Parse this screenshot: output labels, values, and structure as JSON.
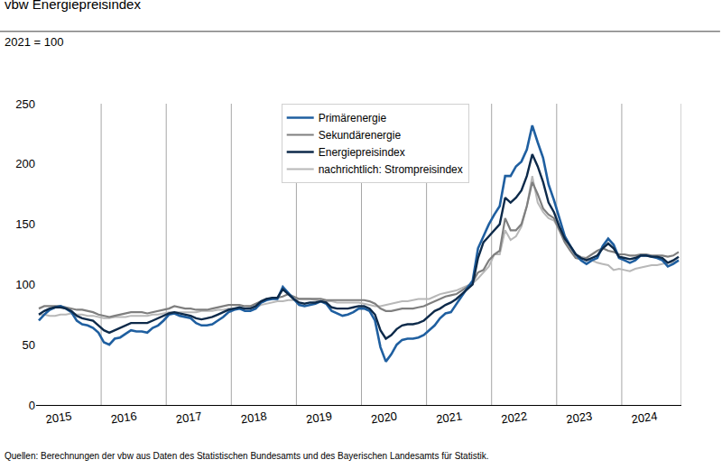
{
  "chart_data": {
    "type": "line",
    "title": "vbw Energiepreisindex",
    "subtitle": "2021 = 100",
    "source": "Quellen: Berechnungen der vbw aus Daten des Statistischen Bundesamts und des Bayerischen Landesamts für Statistik.",
    "categories": [
      null,
      null,
      null,
      null,
      null,
      null,
      "2015",
      null,
      null,
      null,
      null,
      null,
      null,
      null,
      null,
      null,
      null,
      null,
      "2016",
      null,
      null,
      null,
      null,
      null,
      null,
      null,
      null,
      null,
      null,
      null,
      "2017",
      null,
      null,
      null,
      null,
      null,
      null,
      null,
      null,
      null,
      null,
      null,
      "2018",
      null,
      null,
      null,
      null,
      null,
      null,
      null,
      null,
      null,
      null,
      null,
      "2019",
      null,
      null,
      null,
      null,
      null,
      null,
      null,
      null,
      null,
      null,
      null,
      "2020",
      null,
      null,
      null,
      null,
      null,
      null,
      null,
      null,
      null,
      null,
      null,
      "2021",
      null,
      null,
      null,
      null,
      null,
      null,
      null,
      null,
      null,
      null,
      null,
      "2022",
      null,
      null,
      null,
      null,
      null,
      null,
      null,
      null,
      null,
      null,
      null,
      "2023",
      null,
      null,
      null,
      null,
      null,
      null,
      null,
      null,
      null,
      null,
      null,
      "2024",
      null,
      null,
      null,
      null
    ],
    "series": [
      {
        "name": "Primärenergie",
        "color": "#1f5fa0",
        "values": [
          70,
          75,
          79,
          81,
          82,
          80,
          77,
          70,
          67,
          66,
          64,
          60,
          52,
          50,
          55,
          56,
          59,
          62,
          61,
          61,
          60,
          64,
          66,
          70,
          75,
          76,
          74,
          73,
          72,
          68,
          66,
          66,
          67,
          70,
          73,
          77,
          79,
          80,
          78,
          78,
          80,
          85,
          87,
          88,
          88,
          98,
          93,
          88,
          83,
          82,
          83,
          84,
          86,
          84,
          78,
          76,
          74,
          75,
          77,
          80,
          80,
          78,
          70,
          48,
          36,
          42,
          50,
          54,
          55,
          55,
          56,
          58,
          62,
          66,
          72,
          76,
          77,
          84,
          90,
          97,
          103,
          130,
          140,
          150,
          158,
          165,
          190,
          190,
          198,
          202,
          212,
          232,
          218,
          205,
          183,
          170,
          155,
          140,
          132,
          125,
          120,
          117,
          120,
          122,
          132,
          138,
          133,
          122,
          120,
          118,
          120,
          124,
          124,
          123,
          122,
          120,
          115,
          117,
          120
        ]
      },
      {
        "name": "Sekundärenergie",
        "color": "#7f7f7f",
        "values": [
          80,
          82,
          82,
          82,
          82,
          81,
          80,
          79,
          79,
          78,
          77,
          75,
          74,
          73,
          74,
          75,
          76,
          77,
          77,
          77,
          76,
          77,
          78,
          79,
          80,
          82,
          81,
          80,
          80,
          79,
          79,
          79,
          80,
          81,
          82,
          83,
          83,
          83,
          82,
          82,
          84,
          86,
          88,
          88,
          89,
          90,
          92,
          90,
          88,
          88,
          88,
          88,
          88,
          87,
          87,
          87,
          87,
          87,
          87,
          87,
          87,
          86,
          84,
          80,
          78,
          78,
          79,
          80,
          80,
          80,
          81,
          82,
          84,
          86,
          88,
          90,
          91,
          92,
          95,
          98,
          102,
          110,
          112,
          120,
          125,
          128,
          155,
          145,
          145,
          150,
          165,
          185,
          175,
          163,
          158,
          155,
          145,
          135,
          128,
          122,
          121,
          122,
          125,
          128,
          130,
          128,
          127,
          125,
          125,
          124,
          124,
          125,
          125,
          124,
          124,
          124,
          123,
          124,
          127
        ]
      },
      {
        "name": "Energiepreisindex",
        "color": "#0d2a4a",
        "values": [
          75,
          78,
          80,
          81,
          81,
          80,
          78,
          74,
          72,
          71,
          70,
          66,
          62,
          60,
          62,
          64,
          66,
          68,
          68,
          68,
          68,
          70,
          72,
          74,
          76,
          77,
          76,
          75,
          74,
          72,
          71,
          72,
          73,
          75,
          77,
          79,
          80,
          81,
          80,
          80,
          82,
          86,
          88,
          89,
          89,
          96,
          92,
          88,
          85,
          84,
          85,
          85,
          86,
          85,
          81,
          80,
          80,
          80,
          81,
          82,
          82,
          80,
          75,
          62,
          55,
          58,
          63,
          66,
          67,
          67,
          68,
          70,
          74,
          78,
          80,
          83,
          85,
          88,
          92,
          96,
          100,
          122,
          135,
          140,
          145,
          150,
          172,
          168,
          172,
          178,
          190,
          208,
          198,
          185,
          168,
          160,
          148,
          138,
          132,
          125,
          122,
          120,
          122,
          124,
          130,
          134,
          130,
          123,
          122,
          121,
          122,
          124,
          124,
          123,
          123,
          122,
          118,
          120,
          123
        ]
      },
      {
        "name": "nachrichtlich: Strompreisindex",
        "color": "#b8b8b8",
        "values": [
          75,
          75,
          74,
          74,
          75,
          75,
          76,
          75,
          75,
          74,
          74,
          73,
          72,
          72,
          73,
          73,
          73,
          74,
          74,
          74,
          74,
          75,
          75,
          76,
          77,
          77,
          77,
          77,
          77,
          77,
          78,
          78,
          78,
          79,
          79,
          80,
          80,
          80,
          80,
          81,
          81,
          83,
          84,
          85,
          86,
          86,
          87,
          87,
          88,
          88,
          88,
          87,
          86,
          86,
          86,
          85,
          85,
          85,
          85,
          85,
          84,
          83,
          82,
          82,
          83,
          84,
          85,
          86,
          86,
          87,
          88,
          88,
          88,
          90,
          92,
          93,
          94,
          95,
          97,
          99,
          101,
          105,
          110,
          115,
          125,
          125,
          145,
          137,
          140,
          148,
          165,
          190,
          168,
          160,
          155,
          153,
          145,
          138,
          130,
          125,
          123,
          122,
          120,
          118,
          117,
          116,
          112,
          113,
          112,
          111,
          113,
          114,
          115,
          116,
          116,
          117,
          118,
          118,
          120
        ]
      }
    ],
    "ylim": [
      0,
      250
    ],
    "yticks": [
      0,
      50,
      100,
      150,
      200,
      250
    ],
    "grid": true,
    "legend": "top"
  }
}
